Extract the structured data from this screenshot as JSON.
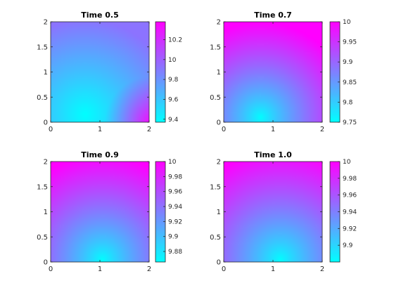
{
  "chart_data": [
    {
      "type": "heatmap",
      "title": "Time 0.5",
      "xlim": [
        0,
        2
      ],
      "ylim": [
        0,
        2
      ],
      "x_ticks": [
        "0",
        "1",
        "2"
      ],
      "y_ticks": [
        "0",
        "0.5",
        "1",
        "1.5",
        "2"
      ],
      "colormap": "cool",
      "colorbar": {
        "min": 9.37,
        "max": 10.38,
        "ticks": [
          9.4,
          9.6,
          9.8,
          10,
          10.2
        ],
        "labels": [
          "9.4",
          "9.6",
          "9.8",
          "10",
          "10.2"
        ]
      },
      "field": {
        "base": 9.37,
        "spread": 0.9,
        "min_at": [
          0.7,
          0.15
        ],
        "range": 1.01
      }
    },
    {
      "type": "heatmap",
      "title": "Time 0.7",
      "xlim": [
        0,
        2
      ],
      "ylim": [
        0,
        2
      ],
      "x_ticks": [
        "0",
        "1",
        "2"
      ],
      "y_ticks": [
        "0",
        "0.5",
        "1",
        "1.5",
        "2"
      ],
      "colormap": "cool",
      "colorbar": {
        "min": 9.75,
        "max": 10.0,
        "ticks": [
          9.75,
          9.8,
          9.85,
          9.9,
          9.95,
          10
        ],
        "labels": [
          "9.75",
          "9.8",
          "9.85",
          "9.9",
          "9.95",
          "10"
        ]
      },
      "field": {
        "base": 9.75,
        "spread": 1.0,
        "min_at": [
          0.75,
          0.1
        ],
        "range": 0.25
      }
    },
    {
      "type": "heatmap",
      "title": "Time 0.9",
      "xlim": [
        0,
        2
      ],
      "ylim": [
        0,
        2
      ],
      "x_ticks": [
        "0",
        "1",
        "2"
      ],
      "y_ticks": [
        "0",
        "0.5",
        "1",
        "1.5",
        "2"
      ],
      "colormap": "cool",
      "colorbar": {
        "min": 9.866,
        "max": 10.0,
        "ticks": [
          9.88,
          9.9,
          9.92,
          9.94,
          9.96,
          9.98,
          10
        ],
        "labels": [
          "9.88",
          "9.9",
          "9.92",
          "9.94",
          "9.96",
          "9.98",
          "10"
        ]
      },
      "field": {
        "base": 9.866,
        "spread": 1.1,
        "min_at": [
          1.05,
          0.05
        ],
        "range": 0.134
      }
    },
    {
      "type": "heatmap",
      "title": "Time 1.0",
      "xlim": [
        0,
        2
      ],
      "ylim": [
        0,
        2
      ],
      "x_ticks": [
        "0",
        "1",
        "2"
      ],
      "y_ticks": [
        "0",
        "0.5",
        "1",
        "1.5",
        "2"
      ],
      "colormap": "cool",
      "colorbar": {
        "min": 9.88,
        "max": 10.0,
        "ticks": [
          9.9,
          9.92,
          9.94,
          9.96,
          9.98,
          10
        ],
        "labels": [
          "9.9",
          "9.92",
          "9.94",
          "9.96",
          "9.98",
          "10"
        ]
      },
      "field": {
        "base": 9.88,
        "spread": 1.15,
        "min_at": [
          1.15,
          0.05
        ],
        "range": 0.12
      }
    }
  ]
}
